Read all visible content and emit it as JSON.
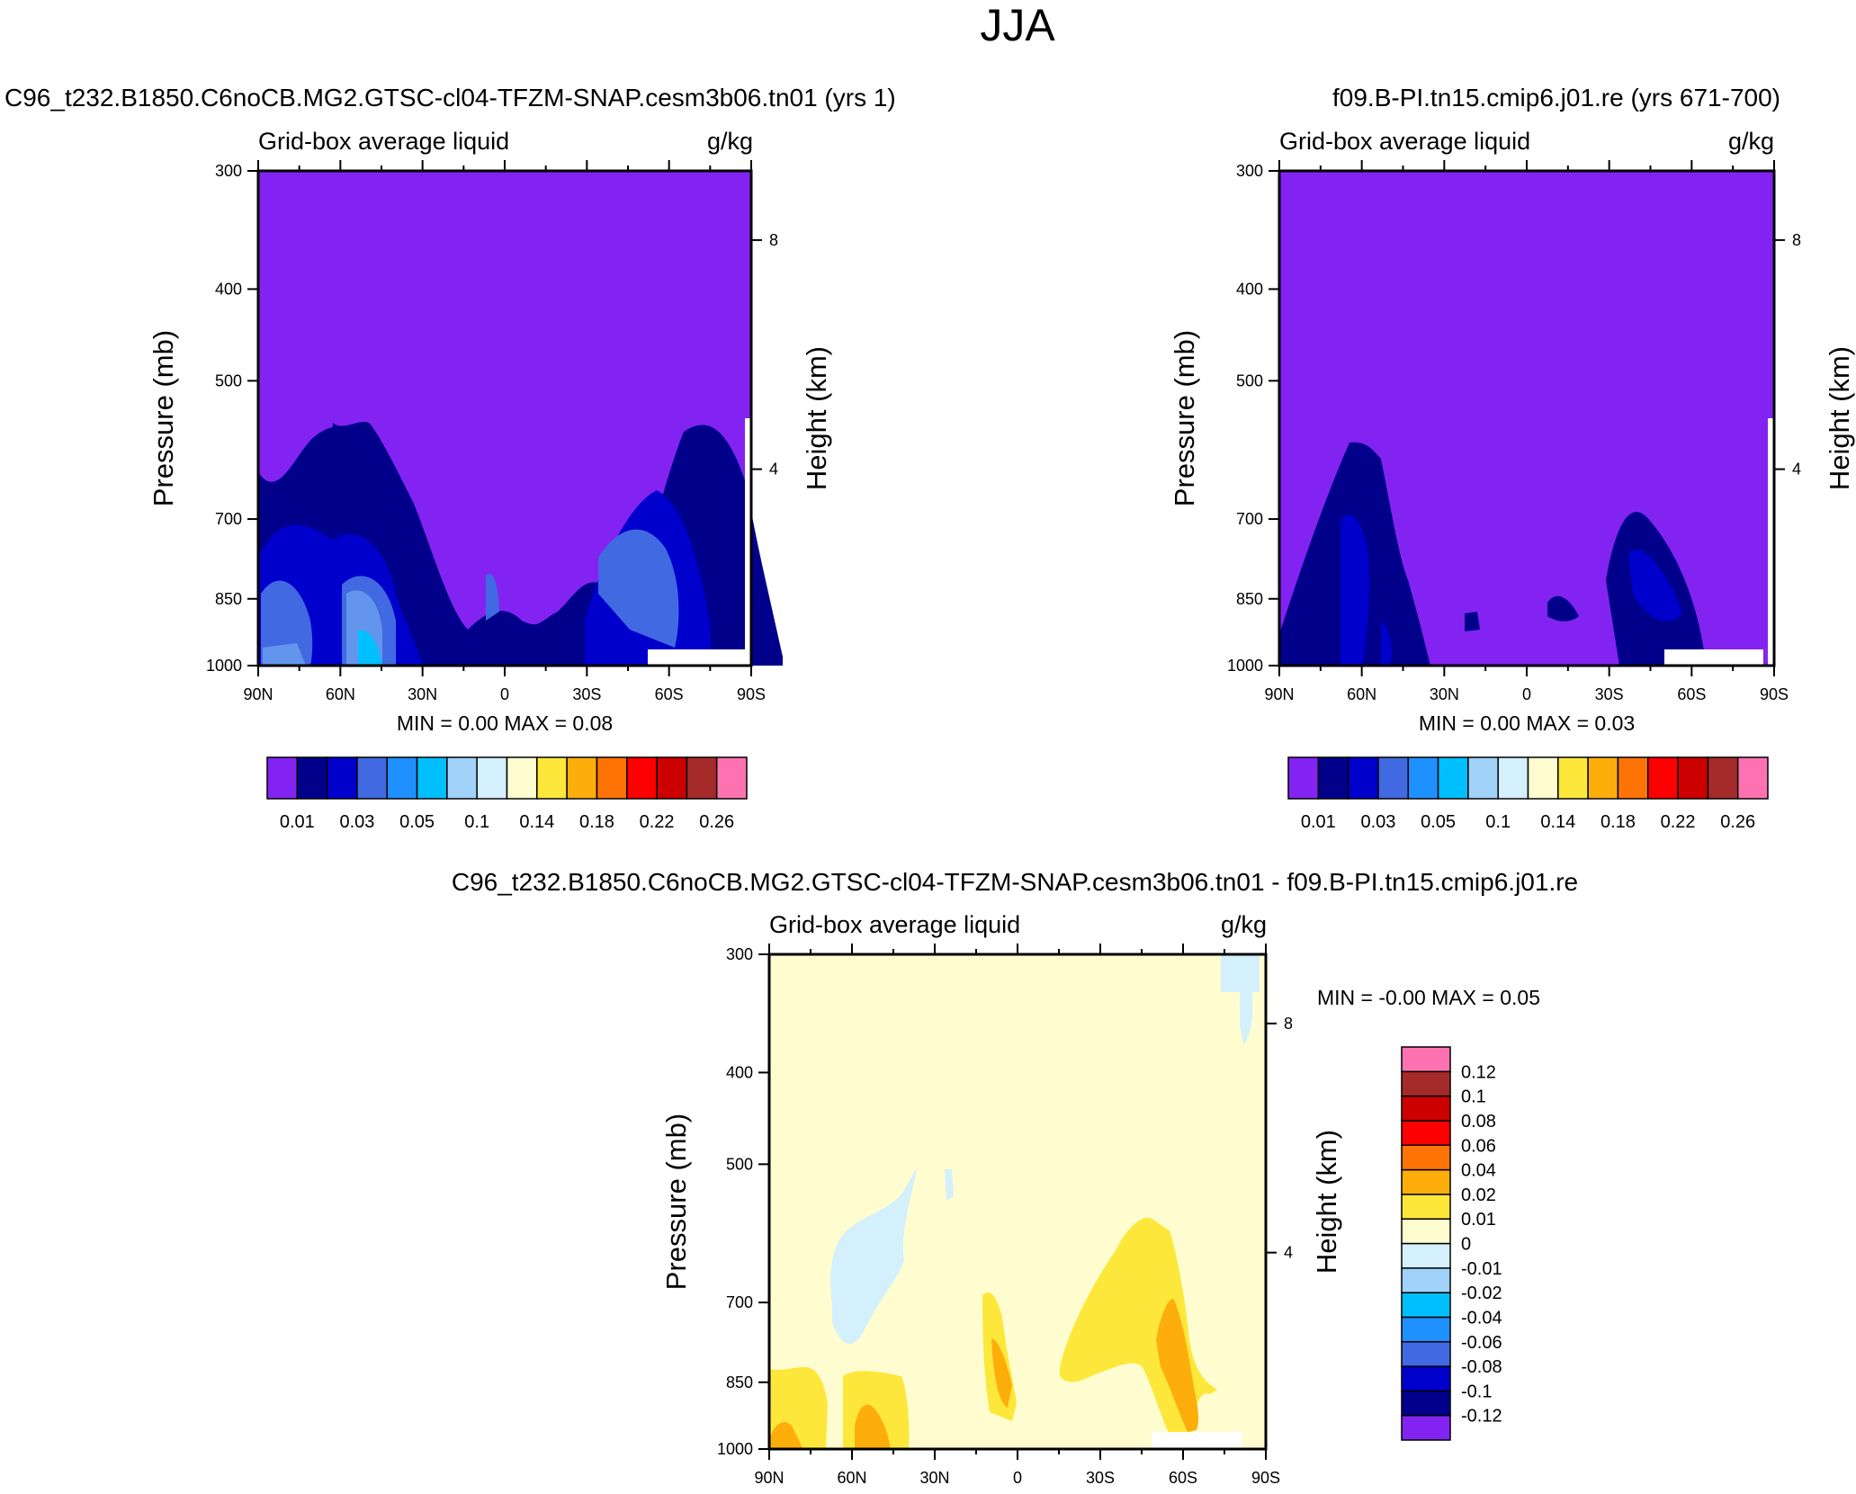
{
  "figure": {
    "title": "JJA"
  },
  "panels": [
    {
      "case_title": "C96_t232.B1850.C6noCB.MG2.GTSC-cl04-TFZM-SNAP.cesm3b06.tn01 (yrs 1)",
      "var_label": "Grid-box average liquid",
      "units": "g/kg",
      "ylabel": "Pressure (mb)",
      "ylabel_right": "Height (km)",
      "min_max": "MIN =   0.00   MAX =   0.08"
    },
    {
      "case_title": "f09.B-PI.tn15.cmip6.j01.re (yrs 671-700)",
      "var_label": "Grid-box average liquid",
      "units": "g/kg",
      "ylabel": "Pressure (mb)",
      "ylabel_right": "Height (km)",
      "min_max": "MIN =   0.00   MAX =   0.03"
    },
    {
      "case_title": "C96_t232.B1850.C6noCB.MG2.GTSC-cl04-TFZM-SNAP.cesm3b06.tn01 - f09.B-PI.tn15.cmip6.j01.re",
      "var_label": "Grid-box average liquid",
      "units": "g/kg",
      "ylabel": "Pressure (mb)",
      "ylabel_right": "Height (km)",
      "min_max": "MIN =  -0.00   MAX =    0.05"
    }
  ],
  "chart_data": [
    {
      "type": "heatmap",
      "title": "C96_t232.B1850.C6noCB.MG2.GTSC-cl04-TFZM-SNAP.cesm3b06.tn01 (yrs 1)",
      "subtitle": "Grid-box average liquid",
      "units": "g/kg",
      "xlabel": "",
      "ylabel": "Pressure (mb)",
      "ylabel_right": "Height (km)",
      "x_ticks": [
        "90N",
        "60N",
        "30N",
        "0",
        "30S",
        "60S",
        "90S"
      ],
      "x_tick_values": [
        90,
        60,
        30,
        0,
        -30,
        -60,
        -90
      ],
      "xlim": [
        90,
        -90
      ],
      "y_ticks": [
        300,
        400,
        500,
        700,
        850,
        1000
      ],
      "ylim": [
        1000,
        300
      ],
      "y_scale": "log",
      "height_ticks": [
        8,
        4
      ],
      "height_tick_pressures": [
        355,
        620
      ],
      "min": 0.0,
      "max": 0.08,
      "colorbar": {
        "orientation": "horizontal",
        "colors": [
          "#8323f2",
          "#00008b",
          "#0000cd",
          "#4169e1",
          "#1e90ff",
          "#00bfff",
          "#a0d2fa",
          "#d3f0fc",
          "#fffdd0",
          "#fde73a",
          "#fdae0b",
          "#fe7306",
          "#fe0000",
          "#cd0000",
          "#a52a2a",
          "#fe72b2"
        ],
        "labels": [
          "0.01",
          "0.03",
          "0.05",
          "0.1",
          "0.14",
          "0.18",
          "0.22",
          "0.26"
        ],
        "label_edge_indices": [
          1,
          3,
          5,
          7,
          9,
          11,
          13,
          15
        ]
      }
    },
    {
      "type": "heatmap",
      "title": "f09.B-PI.tn15.cmip6.j01.re (yrs 671-700)",
      "subtitle": "Grid-box average liquid",
      "units": "g/kg",
      "xlabel": "",
      "ylabel": "Pressure (mb)",
      "ylabel_right": "Height (km)",
      "x_ticks": [
        "90N",
        "60N",
        "30N",
        "0",
        "30S",
        "60S",
        "90S"
      ],
      "x_tick_values": [
        90,
        60,
        30,
        0,
        -30,
        -60,
        -90
      ],
      "xlim": [
        90,
        -90
      ],
      "y_ticks": [
        300,
        400,
        500,
        700,
        850,
        1000
      ],
      "ylim": [
        1000,
        300
      ],
      "y_scale": "log",
      "height_ticks": [
        8,
        4
      ],
      "height_tick_pressures": [
        355,
        620
      ],
      "min": 0.0,
      "max": 0.03,
      "colorbar": {
        "orientation": "horizontal",
        "colors": [
          "#8323f2",
          "#00008b",
          "#0000cd",
          "#4169e1",
          "#1e90ff",
          "#00bfff",
          "#a0d2fa",
          "#d3f0fc",
          "#fffdd0",
          "#fde73a",
          "#fdae0b",
          "#fe7306",
          "#fe0000",
          "#cd0000",
          "#a52a2a",
          "#fe72b2"
        ],
        "labels": [
          "0.01",
          "0.03",
          "0.05",
          "0.1",
          "0.14",
          "0.18",
          "0.22",
          "0.26"
        ],
        "label_edge_indices": [
          1,
          3,
          5,
          7,
          9,
          11,
          13,
          15
        ]
      }
    },
    {
      "type": "heatmap",
      "title": "C96_t232.B1850.C6noCB.MG2.GTSC-cl04-TFZM-SNAP.cesm3b06.tn01 - f09.B-PI.tn15.cmip6.j01.re",
      "subtitle": "Grid-box average liquid",
      "units": "g/kg",
      "xlabel": "",
      "ylabel": "Pressure (mb)",
      "ylabel_right": "Height (km)",
      "x_ticks": [
        "90N",
        "60N",
        "30N",
        "0",
        "30S",
        "60S",
        "90S"
      ],
      "x_tick_values": [
        90,
        60,
        30,
        0,
        -30,
        -60,
        -90
      ],
      "xlim": [
        90,
        -90
      ],
      "y_ticks": [
        300,
        400,
        500,
        700,
        850,
        1000
      ],
      "ylim": [
        1000,
        300
      ],
      "y_scale": "log",
      "height_ticks": [
        8,
        4
      ],
      "height_tick_pressures": [
        355,
        620
      ],
      "min": -0.0,
      "max": 0.05,
      "colorbar": {
        "orientation": "vertical",
        "colors": [
          "#8323f2",
          "#00008b",
          "#0000cd",
          "#4169e1",
          "#1e90ff",
          "#00bfff",
          "#a0d2fa",
          "#d3f0fc",
          "#fffdd0",
          "#fde73a",
          "#fdae0b",
          "#fe7306",
          "#fe0000",
          "#cd0000",
          "#a52a2a",
          "#fe72b2"
        ],
        "labels": [
          "-0.12",
          "-0.1",
          "-0.08",
          "-0.06",
          "-0.04",
          "-0.02",
          "-0.01",
          "0",
          "0.01",
          "0.02",
          "0.04",
          "0.06",
          "0.08",
          "0.1",
          "0.12"
        ],
        "label_edge_indices": [
          1,
          2,
          3,
          4,
          5,
          6,
          7,
          8,
          9,
          10,
          11,
          12,
          13,
          14,
          15
        ]
      }
    }
  ]
}
